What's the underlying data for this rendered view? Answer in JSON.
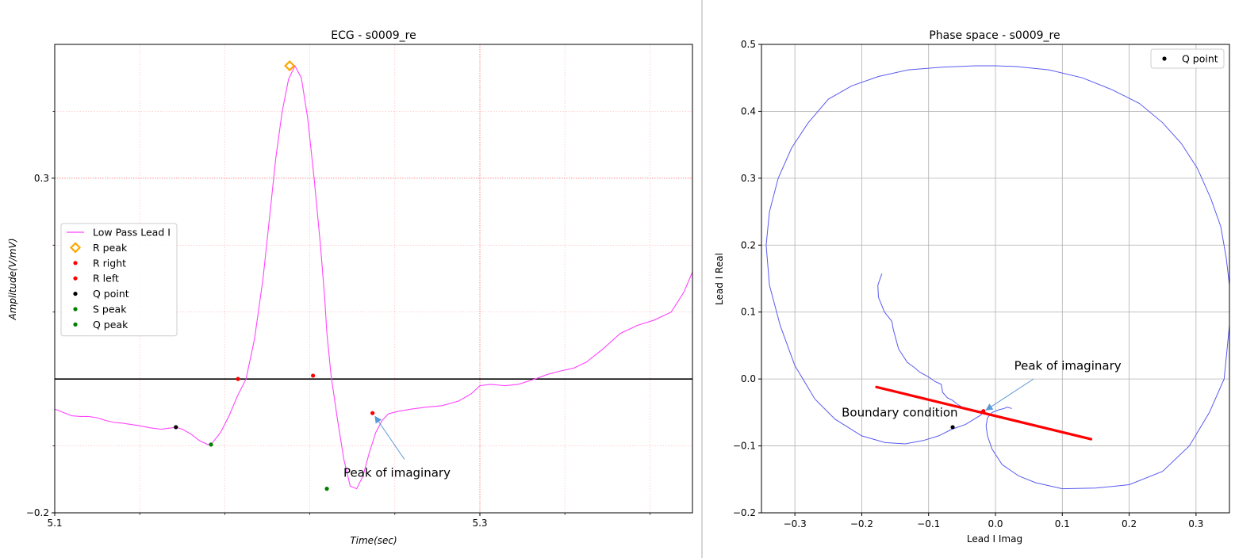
{
  "chart_data": [
    {
      "type": "line",
      "title": "ECG - s0009_re",
      "xlabel": "Time(sec)",
      "ylabel": "Amplitude(V/mV)",
      "xlim": [
        5.1,
        5.4
      ],
      "ylim": [
        -0.2,
        0.5
      ],
      "xticks": [
        5.1,
        5.3
      ],
      "xtick_labels": [
        "5.1",
        "5.3"
      ],
      "yticks": [
        -0.2,
        0.3
      ],
      "ytick_labels": [
        "−0.2",
        "0.3"
      ],
      "minor_xticks": [
        5.14,
        5.18,
        5.22,
        5.26,
        5.34,
        5.38
      ],
      "minor_yticks": [
        -0.1,
        0.1,
        0.2,
        0.4
      ],
      "grid": true,
      "legend_position": "center-left",
      "baseline_y": 0.0,
      "series": [
        {
          "name": "Low Pass Lead I",
          "color": "#ff44ff",
          "x": [
            5.1,
            5.104,
            5.108,
            5.112,
            5.116,
            5.12,
            5.124,
            5.128,
            5.132,
            5.136,
            5.14,
            5.145,
            5.15,
            5.155,
            5.157,
            5.16,
            5.164,
            5.168,
            5.172,
            5.174,
            5.178,
            5.182,
            5.186,
            5.19,
            5.194,
            5.198,
            5.201,
            5.204,
            5.207,
            5.21,
            5.213,
            5.216,
            5.219,
            5.222,
            5.225,
            5.227,
            5.228,
            5.23,
            5.233,
            5.236,
            5.239,
            5.242,
            5.245,
            5.248,
            5.251,
            5.254,
            5.257,
            5.262,
            5.268,
            5.275,
            5.282,
            5.29,
            5.296,
            5.3,
            5.305,
            5.312,
            5.318,
            5.326,
            5.332,
            5.338,
            5.344,
            5.35,
            5.358,
            5.366,
            5.374,
            5.382,
            5.39,
            5.396,
            5.4
          ],
          "y": [
            -0.045,
            -0.05,
            -0.055,
            -0.056,
            -0.056,
            -0.058,
            -0.062,
            -0.065,
            -0.066,
            -0.068,
            -0.07,
            -0.073,
            -0.075,
            -0.073,
            -0.072,
            -0.075,
            -0.082,
            -0.092,
            -0.098,
            -0.096,
            -0.08,
            -0.055,
            -0.025,
            0.0,
            0.06,
            0.15,
            0.24,
            0.33,
            0.4,
            0.448,
            0.468,
            0.45,
            0.39,
            0.3,
            0.2,
            0.12,
            0.07,
            0.005,
            -0.06,
            -0.12,
            -0.16,
            -0.164,
            -0.145,
            -0.11,
            -0.08,
            -0.062,
            -0.052,
            -0.048,
            -0.045,
            -0.042,
            -0.04,
            -0.033,
            -0.022,
            -0.01,
            -0.008,
            -0.01,
            -0.008,
            0.0,
            0.007,
            0.012,
            0.016,
            0.025,
            0.045,
            0.068,
            0.08,
            0.088,
            0.1,
            0.13,
            0.16
          ]
        }
      ],
      "markers": [
        {
          "name": "R peak",
          "x": 5.2105,
          "y": 0.468,
          "color": "#ffa500",
          "shape": "diamond"
        },
        {
          "name": "R right",
          "x": 5.2215,
          "y": 0.005,
          "color": "#ff0000",
          "shape": "dot"
        },
        {
          "name": "R left",
          "x": 5.1862,
          "y": 0.0,
          "color": "#ff0000",
          "shape": "dot"
        },
        {
          "name": "Q point",
          "x": 5.157,
          "y": -0.072,
          "color": "#000000",
          "shape": "dot"
        },
        {
          "name": "S peak",
          "x": 5.228,
          "y": -0.164,
          "color": "#008000",
          "shape": "dot"
        },
        {
          "name": "Q peak",
          "x": 5.1735,
          "y": -0.098,
          "color": "#008000",
          "shape": "dot"
        },
        {
          "name": "",
          "x": 5.2495,
          "y": -0.051,
          "color": "#ff0000",
          "shape": "dot"
        }
      ],
      "legend": [
        "Low Pass Lead I",
        "R peak",
        "R right",
        "R left",
        "Q point",
        "S peak",
        "Q peak"
      ],
      "annotations": [
        {
          "text": "Peak of imaginary",
          "x": 5.2358,
          "y": -0.146,
          "arrow_from": [
            5.2645,
            -0.12
          ],
          "arrow_to": [
            5.2505,
            -0.055
          ]
        }
      ]
    },
    {
      "type": "line",
      "title": "Phase space - s0009_re",
      "xlabel": "Lead I Imag",
      "ylabel": "Lead I Real",
      "xlim": [
        -0.35,
        0.35
      ],
      "ylim": [
        -0.2,
        0.5
      ],
      "xticks": [
        -0.3,
        -0.2,
        -0.1,
        0.0,
        0.1,
        0.2,
        0.3
      ],
      "xtick_labels": [
        "−0.3",
        "−0.2",
        "−0.1",
        "0.0",
        "0.1",
        "0.2",
        "0.3"
      ],
      "yticks": [
        -0.2,
        -0.1,
        0.0,
        0.1,
        0.2,
        0.3,
        0.4,
        0.5
      ],
      "ytick_labels": [
        "−0.2",
        "−0.1",
        "0.0",
        "0.1",
        "0.2",
        "0.3",
        "0.4",
        "0.5"
      ],
      "grid": true,
      "legend_position": "top-right",
      "series": [
        {
          "name": "",
          "color": "#5a5af0",
          "x": [
            -0.17,
            -0.176,
            -0.175,
            -0.166,
            -0.155,
            -0.153,
            -0.145,
            -0.132,
            -0.12,
            -0.113,
            -0.1,
            -0.09,
            -0.081,
            -0.079,
            -0.072,
            -0.064,
            -0.058,
            -0.05,
            -0.043,
            -0.035,
            -0.028,
            -0.022,
            -0.018,
            -0.022,
            -0.045,
            -0.065,
            -0.085,
            -0.108,
            -0.135,
            -0.165,
            -0.2,
            -0.24,
            -0.27,
            -0.3,
            -0.322,
            -0.338,
            -0.343,
            -0.338,
            -0.325,
            -0.305,
            -0.28,
            -0.25,
            -0.215,
            -0.175,
            -0.13,
            -0.08,
            -0.03,
            0.0,
            0.03,
            0.08,
            0.13,
            0.175,
            0.215,
            0.25,
            0.278,
            0.302,
            0.322,
            0.337,
            0.345,
            0.35,
            0.35,
            0.342,
            0.32,
            0.29,
            0.25,
            0.2,
            0.15,
            0.1,
            0.06,
            0.035,
            0.01,
            -0.005,
            -0.012,
            -0.014,
            -0.012,
            -0.005,
            0.005,
            0.013,
            0.018,
            0.024
          ],
          "y": [
            0.157,
            0.14,
            0.122,
            0.1,
            0.086,
            0.075,
            0.045,
            0.025,
            0.016,
            0.01,
            0.003,
            -0.004,
            -0.008,
            -0.02,
            -0.028,
            -0.032,
            -0.037,
            -0.042,
            -0.045,
            -0.047,
            -0.048,
            -0.048,
            -0.048,
            -0.054,
            -0.068,
            -0.075,
            -0.085,
            -0.092,
            -0.097,
            -0.095,
            -0.085,
            -0.06,
            -0.03,
            0.02,
            0.08,
            0.14,
            0.2,
            0.25,
            0.3,
            0.345,
            0.383,
            0.418,
            0.438,
            0.452,
            0.462,
            0.466,
            0.468,
            0.468,
            0.467,
            0.462,
            0.45,
            0.432,
            0.412,
            0.383,
            0.352,
            0.315,
            0.27,
            0.228,
            0.182,
            0.14,
            0.08,
            0.0,
            -0.05,
            -0.1,
            -0.138,
            -0.158,
            -0.163,
            -0.164,
            -0.155,
            -0.145,
            -0.128,
            -0.105,
            -0.085,
            -0.07,
            -0.058,
            -0.05,
            -0.046,
            -0.044,
            -0.042,
            -0.044
          ]
        },
        {
          "name": "",
          "color": "#ff0000",
          "x": [
            -0.178,
            0.143
          ],
          "y": [
            -0.012,
            -0.09
          ]
        }
      ],
      "markers": [
        {
          "name": "Q point",
          "x": -0.064,
          "y": -0.072,
          "color": "#000000",
          "shape": "dot"
        },
        {
          "name": "",
          "x": -0.018,
          "y": -0.048,
          "color": "#ff0000",
          "shape": "dot"
        }
      ],
      "legend": [
        "Q point"
      ],
      "annotations": [
        {
          "text": "Peak of imaginary",
          "x": 0.028,
          "y": 0.014,
          "arrow_from": [
            0.057,
            0.0
          ],
          "arrow_to": [
            -0.015,
            -0.047
          ]
        },
        {
          "text": "Boundary condition",
          "x": -0.23,
          "y": -0.056
        }
      ]
    }
  ]
}
